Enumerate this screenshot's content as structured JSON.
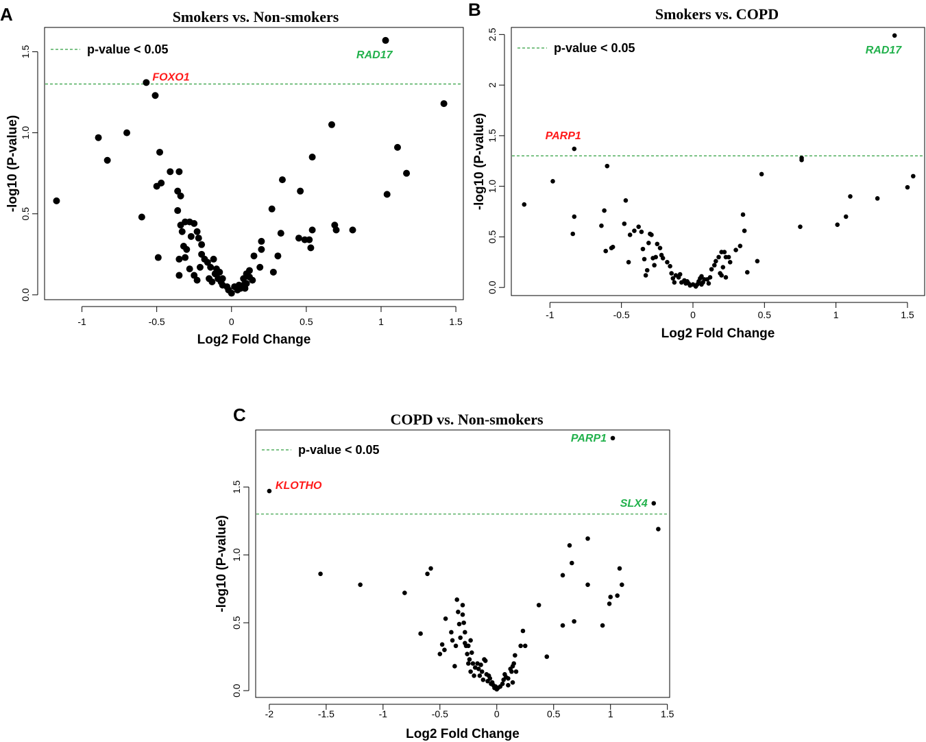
{
  "colors": {
    "up": "#22b14c",
    "down": "#ff1a1a",
    "threshold": "#2e9e3e",
    "point": "#000000"
  },
  "chart_data": [
    {
      "panel": "A",
      "type": "scatter",
      "title": "Smokers vs. Non-smokers",
      "xlabel": "Log2 Fold Change",
      "ylabel": "-log10 (P-value)",
      "xlim": [
        -1.25,
        1.55
      ],
      "ylim": [
        -0.03,
        1.65
      ],
      "xticks": [
        -1,
        -0.5,
        0,
        0.5,
        1,
        1.5
      ],
      "xtick_labels": [
        "-1",
        "-0.5",
        "0",
        "0.5",
        "1",
        "1.5"
      ],
      "yticks": [
        0,
        0.5,
        1,
        1.5
      ],
      "ytick_labels": [
        "0.0",
        "0.5",
        "1.0",
        "1.5"
      ],
      "threshold": 1.301,
      "legend": "p-value < 0.05",
      "legend_position": "top-left",
      "point_size": "large",
      "labels": [
        {
          "text": "FOXO1",
          "x": -0.57,
          "y": 1.31,
          "color": "down",
          "side": "right"
        },
        {
          "text": "RAD17",
          "x": 1.03,
          "y": 1.57,
          "color": "up",
          "side": "below-left"
        }
      ],
      "points": [
        [
          -1.17,
          0.58
        ],
        [
          -0.89,
          0.97
        ],
        [
          -0.83,
          0.83
        ],
        [
          -0.7,
          1.0
        ],
        [
          -0.6,
          0.48
        ],
        [
          -0.57,
          1.31
        ],
        [
          -0.51,
          1.23
        ],
        [
          -0.5,
          0.67
        ],
        [
          -0.48,
          0.88
        ],
        [
          -0.47,
          0.69
        ],
        [
          -0.49,
          0.23
        ],
        [
          -0.41,
          0.76
        ],
        [
          -0.35,
          0.76
        ],
        [
          -0.36,
          0.64
        ],
        [
          -0.34,
          0.61
        ],
        [
          -0.36,
          0.52
        ],
        [
          -0.34,
          0.43
        ],
        [
          -0.33,
          0.39
        ],
        [
          -0.31,
          0.45
        ],
        [
          -0.28,
          0.45
        ],
        [
          -0.25,
          0.44
        ],
        [
          -0.32,
          0.3
        ],
        [
          -0.3,
          0.28
        ],
        [
          -0.27,
          0.36
        ],
        [
          -0.23,
          0.39
        ],
        [
          -0.22,
          0.35
        ],
        [
          -0.2,
          0.31
        ],
        [
          -0.35,
          0.22
        ],
        [
          -0.31,
          0.23
        ],
        [
          -0.28,
          0.16
        ],
        [
          -0.25,
          0.12
        ],
        [
          -0.2,
          0.25
        ],
        [
          -0.18,
          0.22
        ],
        [
          -0.16,
          0.2
        ],
        [
          -0.14,
          0.17
        ],
        [
          -0.12,
          0.22
        ],
        [
          -0.11,
          0.13
        ],
        [
          -0.1,
          0.16
        ],
        [
          -0.09,
          0.1
        ],
        [
          -0.08,
          0.14
        ],
        [
          -0.21,
          0.17
        ],
        [
          -0.23,
          0.09
        ],
        [
          -0.35,
          0.12
        ],
        [
          -0.15,
          0.1
        ],
        [
          -0.13,
          0.08
        ],
        [
          -0.06,
          0.1
        ],
        [
          -0.03,
          0.05
        ],
        [
          -0.02,
          0.03
        ],
        [
          0.0,
          0.01
        ],
        [
          0.02,
          0.05
        ],
        [
          0.04,
          0.03
        ],
        [
          0.05,
          0.06
        ],
        [
          0.06,
          0.04
        ],
        [
          0.08,
          0.06
        ],
        [
          0.1,
          0.07
        ],
        [
          0.12,
          0.11
        ],
        [
          0.1,
          0.13
        ],
        [
          0.12,
          0.15
        ],
        [
          0.14,
          0.09
        ],
        [
          0.15,
          0.24
        ],
        [
          0.19,
          0.17
        ],
        [
          0.2,
          0.28
        ],
        [
          0.2,
          0.33
        ],
        [
          0.27,
          0.53
        ],
        [
          0.28,
          0.14
        ],
        [
          0.31,
          0.24
        ],
        [
          0.33,
          0.38
        ],
        [
          0.34,
          0.71
        ],
        [
          0.45,
          0.35
        ],
        [
          0.46,
          0.64
        ],
        [
          0.49,
          0.34
        ],
        [
          0.52,
          0.34
        ],
        [
          0.53,
          0.29
        ],
        [
          0.54,
          0.4
        ],
        [
          0.54,
          0.85
        ],
        [
          0.67,
          1.05
        ],
        [
          0.69,
          0.43
        ],
        [
          0.7,
          0.4
        ],
        [
          0.81,
          0.4
        ],
        [
          1.03,
          1.57
        ],
        [
          1.04,
          0.62
        ],
        [
          1.11,
          0.91
        ],
        [
          1.17,
          0.75
        ],
        [
          1.42,
          1.18
        ],
        [
          0.08,
          0.1
        ],
        [
          0.09,
          0.04
        ],
        [
          -0.06,
          0.06
        ],
        [
          -0.07,
          0.08
        ]
      ]
    },
    {
      "panel": "B",
      "type": "scatter",
      "title": "Smokers vs. COPD",
      "xlabel": "Log2 Fold Change",
      "ylabel": "-log10 (P-value)",
      "xlim": [
        -1.27,
        1.62
      ],
      "ylim": [
        -0.08,
        2.57
      ],
      "xticks": [
        -1,
        -0.5,
        0,
        0.5,
        1,
        1.5
      ],
      "xtick_labels": [
        "-1",
        "-0.5",
        "0",
        "0.5",
        "1",
        "1.5"
      ],
      "yticks": [
        0,
        0.5,
        1,
        1.5,
        2,
        2.5
      ],
      "ytick_labels": [
        "0.0",
        "0.5",
        "1.0",
        "1.5",
        "2",
        "2.5"
      ],
      "threshold": 1.301,
      "legend": "p-value < 0.05",
      "legend_position": "top-left",
      "point_size": "small",
      "labels": [
        {
          "text": "PARP1",
          "x": -0.83,
          "y": 1.37,
          "color": "down",
          "side": "above"
        },
        {
          "text": "RAD17",
          "x": 1.41,
          "y": 2.49,
          "color": "up",
          "side": "below-left"
        }
      ],
      "points": [
        [
          -1.18,
          0.82
        ],
        [
          -0.98,
          1.05
        ],
        [
          -0.83,
          1.37
        ],
        [
          -0.83,
          0.7
        ],
        [
          -0.84,
          0.53
        ],
        [
          -0.6,
          1.2
        ],
        [
          -0.64,
          0.61
        ],
        [
          -0.62,
          0.76
        ],
        [
          -0.61,
          0.36
        ],
        [
          -0.57,
          0.39
        ],
        [
          -0.56,
          0.4
        ],
        [
          -0.47,
          0.86
        ],
        [
          -0.48,
          0.63
        ],
        [
          -0.45,
          0.25
        ],
        [
          -0.44,
          0.52
        ],
        [
          -0.41,
          0.56
        ],
        [
          -0.38,
          0.6
        ],
        [
          -0.36,
          0.55
        ],
        [
          -0.35,
          0.38
        ],
        [
          -0.34,
          0.28
        ],
        [
          -0.33,
          0.12
        ],
        [
          -0.32,
          0.17
        ],
        [
          -0.31,
          0.44
        ],
        [
          -0.3,
          0.53
        ],
        [
          -0.29,
          0.52
        ],
        [
          -0.28,
          0.29
        ],
        [
          -0.27,
          0.22
        ],
        [
          -0.26,
          0.3
        ],
        [
          -0.25,
          0.43
        ],
        [
          -0.23,
          0.39
        ],
        [
          -0.22,
          0.32
        ],
        [
          -0.21,
          0.29
        ],
        [
          -0.18,
          0.25
        ],
        [
          -0.16,
          0.21
        ],
        [
          -0.15,
          0.14
        ],
        [
          -0.14,
          0.09
        ],
        [
          -0.13,
          0.05
        ],
        [
          -0.12,
          0.12
        ],
        [
          -0.1,
          0.1
        ],
        [
          -0.09,
          0.13
        ],
        [
          -0.08,
          0.05
        ],
        [
          -0.06,
          0.07
        ],
        [
          -0.05,
          0.04
        ],
        [
          -0.03,
          0.04
        ],
        [
          -0.02,
          0.02
        ],
        [
          0.0,
          0.03
        ],
        [
          0.02,
          0.01
        ],
        [
          0.03,
          0.03
        ],
        [
          0.04,
          0.06
        ],
        [
          0.05,
          0.09
        ],
        [
          0.06,
          0.11
        ],
        [
          0.07,
          0.05
        ],
        [
          0.08,
          0.08
        ],
        [
          0.1,
          0.08
        ],
        [
          0.12,
          0.1
        ],
        [
          0.13,
          0.18
        ],
        [
          0.15,
          0.22
        ],
        [
          0.16,
          0.26
        ],
        [
          0.18,
          0.3
        ],
        [
          0.2,
          0.35
        ],
        [
          0.22,
          0.35
        ],
        [
          0.23,
          0.3
        ],
        [
          0.21,
          0.2
        ],
        [
          0.19,
          0.14
        ],
        [
          0.2,
          0.12
        ],
        [
          0.23,
          0.1
        ],
        [
          0.25,
          0.3
        ],
        [
          0.26,
          0.25
        ],
        [
          0.3,
          0.37
        ],
        [
          0.33,
          0.41
        ],
        [
          0.35,
          0.72
        ],
        [
          0.36,
          0.56
        ],
        [
          0.38,
          0.15
        ],
        [
          0.45,
          0.26
        ],
        [
          0.48,
          1.12
        ],
        [
          0.75,
          0.6
        ],
        [
          0.76,
          1.28
        ],
        [
          0.76,
          1.26
        ],
        [
          1.01,
          0.62
        ],
        [
          1.07,
          0.7
        ],
        [
          1.1,
          0.9
        ],
        [
          1.29,
          0.88
        ],
        [
          1.41,
          2.49
        ],
        [
          1.5,
          0.99
        ],
        [
          1.54,
          1.1
        ],
        [
          0.11,
          0.04
        ],
        [
          0.06,
          0.03
        ],
        [
          -0.04,
          0.06
        ]
      ]
    },
    {
      "panel": "C",
      "type": "scatter",
      "title": "COPD vs. Non-smokers",
      "xlabel": "Log2 Fold Change",
      "ylabel": "-log10 (P-value)",
      "xlim": [
        -2.12,
        1.52
      ],
      "ylim": [
        -0.05,
        1.92
      ],
      "xticks": [
        -2,
        -1.5,
        -1,
        -0.5,
        0,
        0.5,
        1,
        1.5
      ],
      "xtick_labels": [
        "-2",
        "-1.5",
        "-1",
        "-0.5",
        "0",
        "0.5",
        "1",
        "1.5"
      ],
      "yticks": [
        0,
        0.5,
        1,
        1.5
      ],
      "ytick_labels": [
        "0.0",
        "0.5",
        "1.0",
        "1.5"
      ],
      "threshold": 1.301,
      "legend": "p-value < 0.05",
      "legend_position": "top-left",
      "point_size": "small",
      "labels": [
        {
          "text": "KLOTHO",
          "x": -2.0,
          "y": 1.47,
          "color": "down",
          "side": "right"
        },
        {
          "text": "PARP1",
          "x": 1.02,
          "y": 1.86,
          "color": "up",
          "side": "left"
        },
        {
          "text": "SLX4",
          "x": 1.38,
          "y": 1.38,
          "color": "up",
          "side": "left"
        }
      ],
      "points": [
        [
          -2.0,
          1.47
        ],
        [
          -1.55,
          0.86
        ],
        [
          -1.2,
          0.78
        ],
        [
          -0.81,
          0.72
        ],
        [
          -0.61,
          0.86
        ],
        [
          -0.58,
          0.9
        ],
        [
          -0.67,
          0.42
        ],
        [
          -0.5,
          0.27
        ],
        [
          -0.48,
          0.34
        ],
        [
          -0.46,
          0.3
        ],
        [
          -0.45,
          0.53
        ],
        [
          -0.4,
          0.43
        ],
        [
          -0.39,
          0.37
        ],
        [
          -0.37,
          0.18
        ],
        [
          -0.36,
          0.33
        ],
        [
          -0.35,
          0.67
        ],
        [
          -0.34,
          0.58
        ],
        [
          -0.33,
          0.49
        ],
        [
          -0.32,
          0.39
        ],
        [
          -0.3,
          0.63
        ],
        [
          -0.3,
          0.56
        ],
        [
          -0.29,
          0.5
        ],
        [
          -0.28,
          0.43
        ],
        [
          -0.28,
          0.35
        ],
        [
          -0.27,
          0.33
        ],
        [
          -0.26,
          0.27
        ],
        [
          -0.25,
          0.2
        ],
        [
          -0.25,
          0.33
        ],
        [
          -0.24,
          0.23
        ],
        [
          -0.23,
          0.37
        ],
        [
          -0.23,
          0.14
        ],
        [
          -0.22,
          0.28
        ],
        [
          -0.21,
          0.2
        ],
        [
          -0.2,
          0.11
        ],
        [
          -0.19,
          0.17
        ],
        [
          -0.17,
          0.2
        ],
        [
          -0.16,
          0.16
        ],
        [
          -0.15,
          0.11
        ],
        [
          -0.14,
          0.19
        ],
        [
          -0.13,
          0.14
        ],
        [
          -0.12,
          0.08
        ],
        [
          -0.11,
          0.23
        ],
        [
          -0.1,
          0.22
        ],
        [
          -0.09,
          0.12
        ],
        [
          -0.08,
          0.07
        ],
        [
          -0.07,
          0.11
        ],
        [
          -0.06,
          0.09
        ],
        [
          -0.05,
          0.05
        ],
        [
          -0.04,
          0.06
        ],
        [
          -0.03,
          0.04
        ],
        [
          -0.02,
          0.02
        ],
        [
          -0.01,
          0.03
        ],
        [
          0.0,
          0.01
        ],
        [
          0.01,
          0.02
        ],
        [
          0.03,
          0.03
        ],
        [
          0.05,
          0.05
        ],
        [
          0.06,
          0.08
        ],
        [
          0.07,
          0.12
        ],
        [
          0.08,
          0.1
        ],
        [
          0.1,
          0.09
        ],
        [
          0.12,
          0.16
        ],
        [
          0.13,
          0.14
        ],
        [
          0.14,
          0.18
        ],
        [
          0.15,
          0.2
        ],
        [
          0.16,
          0.26
        ],
        [
          0.17,
          0.14
        ],
        [
          0.14,
          0.06
        ],
        [
          0.1,
          0.04
        ],
        [
          0.21,
          0.33
        ],
        [
          0.23,
          0.44
        ],
        [
          0.25,
          0.33
        ],
        [
          0.37,
          0.63
        ],
        [
          0.44,
          0.25
        ],
        [
          0.58,
          0.85
        ],
        [
          0.58,
          0.48
        ],
        [
          0.64,
          1.07
        ],
        [
          0.66,
          0.94
        ],
        [
          0.68,
          0.51
        ],
        [
          0.8,
          1.12
        ],
        [
          0.8,
          0.78
        ],
        [
          0.93,
          0.48
        ],
        [
          0.99,
          0.64
        ],
        [
          1.0,
          0.69
        ],
        [
          1.02,
          1.86
        ],
        [
          1.06,
          0.7
        ],
        [
          1.08,
          0.9
        ],
        [
          1.1,
          0.78
        ],
        [
          1.38,
          1.38
        ],
        [
          1.42,
          1.19
        ]
      ]
    }
  ]
}
